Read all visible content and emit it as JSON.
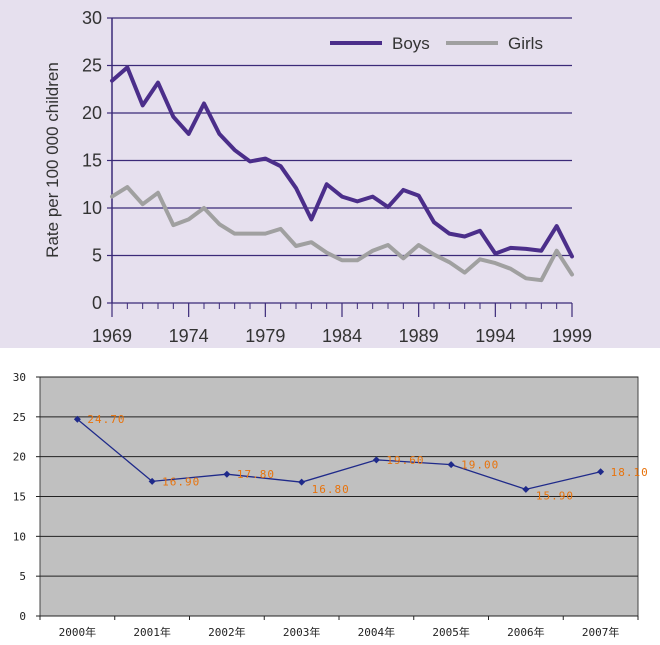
{
  "chart_data": [
    {
      "type": "line",
      "title": "",
      "xlabel": "",
      "ylabel": "Rate per 100 000 children",
      "xlim": [
        1969,
        1999
      ],
      "ylim": [
        0,
        30
      ],
      "x_ticks": [
        "1969",
        "1974",
        "1979",
        "1984",
        "1989",
        "1994",
        "1999"
      ],
      "y_ticks": [
        "0",
        "5",
        "10",
        "15",
        "20",
        "25",
        "30"
      ],
      "grid": "horizontal",
      "legend": "top-right",
      "x": [
        1969,
        1970,
        1971,
        1972,
        1973,
        1974,
        1975,
        1976,
        1977,
        1978,
        1979,
        1980,
        1981,
        1982,
        1983,
        1984,
        1985,
        1986,
        1987,
        1988,
        1989,
        1990,
        1991,
        1992,
        1993,
        1994,
        1995,
        1996,
        1997,
        1998,
        1999
      ],
      "series": [
        {
          "name": "Boys",
          "color": "#4b2e8a",
          "values": [
            23.4,
            24.8,
            20.8,
            23.2,
            19.6,
            17.8,
            21.0,
            17.8,
            16.1,
            14.9,
            15.2,
            14.4,
            12.1,
            8.8,
            12.5,
            11.2,
            10.7,
            11.2,
            10.1,
            11.9,
            11.3,
            8.5,
            7.3,
            7.0,
            7.6,
            5.2,
            5.8,
            5.7,
            5.5,
            8.1,
            4.9
          ]
        },
        {
          "name": "Girls",
          "color": "#a0a0a0",
          "values": [
            11.2,
            12.2,
            10.4,
            11.6,
            8.2,
            8.8,
            10.0,
            8.3,
            7.3,
            7.3,
            7.3,
            7.8,
            6.0,
            6.4,
            5.3,
            4.5,
            4.5,
            5.5,
            6.1,
            4.7,
            6.1,
            5.1,
            4.3,
            3.2,
            4.6,
            4.2,
            3.6,
            2.6,
            2.4,
            5.5,
            3.0
          ]
        }
      ]
    },
    {
      "type": "line",
      "title": "",
      "xlabel": "",
      "ylabel": "",
      "ylim": [
        0,
        30
      ],
      "y_ticks": [
        "0",
        "5",
        "10",
        "15",
        "20",
        "25",
        "30"
      ],
      "grid": "horizontal",
      "legend": "none",
      "categories": [
        "2000年",
        "2001年",
        "2002年",
        "2003年",
        "2004年",
        "2005年",
        "2006年",
        "2007年"
      ],
      "series": [
        {
          "color": "#1f2a8a",
          "values": [
            24.7,
            16.9,
            17.8,
            16.8,
            19.6,
            19.0,
            15.9,
            18.1
          ],
          "labels": [
            "24.70",
            "16.90",
            "17.80",
            "16.80",
            "19.60",
            "19.00",
            "15.90",
            "18.10"
          ]
        }
      ],
      "label_color": "#e8730c",
      "plot_background": "#c0c0c0"
    }
  ]
}
